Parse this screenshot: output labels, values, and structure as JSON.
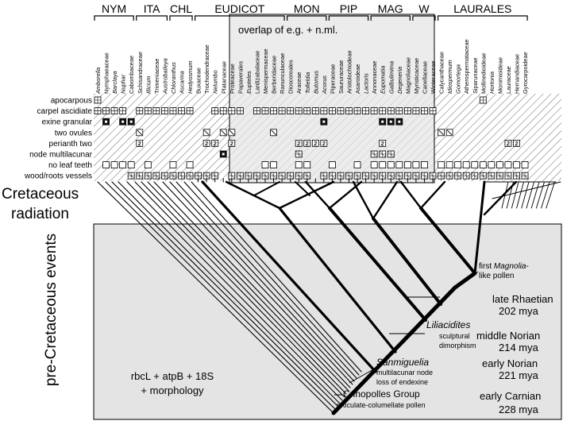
{
  "figure": {
    "groups": [
      "NYM",
      "ITA",
      "CHL",
      "EUDICOT",
      "MON",
      "PIP",
      "MAG",
      "W",
      "LAURALES"
    ],
    "taxa": [
      {
        "name": "Amborella",
        "italic": true
      },
      {
        "name": "Nymphaeaceae",
        "italic": false
      },
      {
        "name": "Barclaya",
        "italic": true
      },
      {
        "name": "Nuphar",
        "italic": true
      },
      {
        "name": "Cabombaceae",
        "italic": false
      },
      {
        "name": "Schisandraceae",
        "italic": false
      },
      {
        "name": "Illicium",
        "italic": true
      },
      {
        "name": "Trimeniaceae",
        "italic": false
      },
      {
        "name": "Austrobaileya",
        "italic": true
      },
      {
        "name": "Chloranthus",
        "italic": true
      },
      {
        "name": "Ascarina",
        "italic": true
      },
      {
        "name": "Hedyosmum",
        "italic": true
      },
      {
        "name": "Buxaceae",
        "italic": false
      },
      {
        "name": "Trochodendraceae",
        "italic": false
      },
      {
        "name": "Nelumbo",
        "italic": true
      },
      {
        "name": "Platanaceae",
        "italic": false
      },
      {
        "name": "Proteaceae",
        "italic": false
      },
      {
        "name": "Papaverales",
        "italic": false
      },
      {
        "name": "Eupteles",
        "italic": true
      },
      {
        "name": "Lardizabalaceae",
        "italic": false
      },
      {
        "name": "Menispermaceae",
        "italic": false
      },
      {
        "name": "Berberidaceae",
        "italic": false
      },
      {
        "name": "Ranunculaceae",
        "italic": false
      },
      {
        "name": "Dioscoreales",
        "italic": false
      },
      {
        "name": "Araceae",
        "italic": false
      },
      {
        "name": "Tofieldia",
        "italic": true
      },
      {
        "name": "Butomus",
        "italic": true
      },
      {
        "name": "Acorus",
        "italic": true
      },
      {
        "name": "Piperaceae",
        "italic": false
      },
      {
        "name": "Saururaceae",
        "italic": false
      },
      {
        "name": "Aristolochiodeae",
        "italic": false
      },
      {
        "name": "Asaroideae",
        "italic": false
      },
      {
        "name": "Lactoris",
        "italic": true
      },
      {
        "name": "Annonaceae",
        "italic": false
      },
      {
        "name": "Eupomatia",
        "italic": true
      },
      {
        "name": "Galbulimima",
        "italic": true
      },
      {
        "name": "Degeneria",
        "italic": true
      },
      {
        "name": "Magnoliaceae",
        "italic": false
      },
      {
        "name": "Myristicaceae",
        "italic": false
      },
      {
        "name": "Canellaceae",
        "italic": false
      },
      {
        "name": "Winteraceae",
        "italic": false
      },
      {
        "name": "Calycanthaceae",
        "italic": false
      },
      {
        "name": "Idiospermum",
        "italic": true
      },
      {
        "name": "Gomortega",
        "italic": true
      },
      {
        "name": "Atherospermataceae",
        "italic": false
      },
      {
        "name": "Siparunaceae",
        "italic": false
      },
      {
        "name": "Mollinedioideae",
        "italic": false
      },
      {
        "name": "Hortonia",
        "italic": true
      },
      {
        "name": "Monimioideae",
        "italic": false
      },
      {
        "name": "Lauraceae",
        "italic": false
      },
      {
        "name": "Hernandiaceae",
        "italic": false
      },
      {
        "name": "Gyrocarpoideae",
        "italic": false
      }
    ],
    "overlap_label": "overlap of e.g. + n.ml.",
    "characters": [
      "apocarpous",
      "carpel ascidiate",
      "exine granular",
      "two ovules",
      "perianth two",
      "node multilacunar",
      "no leaf teeth",
      "wood/roots vessels"
    ],
    "side_labels": {
      "cretaceous": [
        "Cretaceous",
        "radiation"
      ],
      "pre_cretaceous": "pre-Cretaceous events"
    },
    "method_label": [
      "rbcL + atpB + 18S",
      "+ morphology"
    ],
    "events": [
      {
        "lines": [
          "first ",
          "Magnolia",
          "-",
          "like pollen"
        ]
      },
      {
        "lines": [
          "Liliacidites",
          "sculptural",
          "dimorphism"
        ]
      },
      {
        "lines": [
          "Sanmiguelia",
          "multilacunar node",
          "loss of endexine"
        ]
      },
      {
        "lines": [
          "Crinopolles Group",
          "reticulate-columellate pollen"
        ]
      }
    ],
    "ages": [
      {
        "stage": "late Rhaetian",
        "date": "202 mya"
      },
      {
        "stage": "middle Norian",
        "date": "214 mya"
      },
      {
        "stage": "early Norian",
        "date": "221 mya"
      },
      {
        "stage": "early Carnian",
        "date": "228 mya"
      }
    ]
  }
}
